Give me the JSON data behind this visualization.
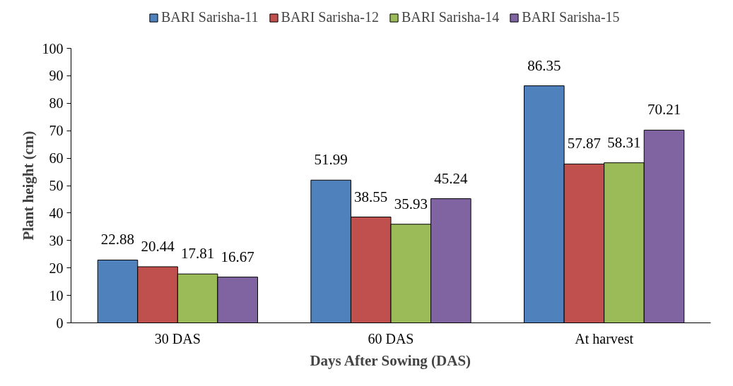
{
  "chart_data": {
    "type": "bar",
    "xlabel": "Days After Sowing (DAS)",
    "ylabel": "Plant height (cm)",
    "categories": [
      "30 DAS",
      "60 DAS",
      "At harvest"
    ],
    "series": [
      {
        "name": "BARI Sarisha-11",
        "color": "#4f81bd",
        "values": [
          22.88,
          51.99,
          86.35
        ]
      },
      {
        "name": "BARI Sarisha-12",
        "color": "#c0504d",
        "values": [
          20.44,
          38.55,
          57.87
        ]
      },
      {
        "name": "BARI Sarisha-14",
        "color": "#9bbb59",
        "values": [
          17.81,
          35.93,
          58.31
        ]
      },
      {
        "name": "BARI Sarisha-15",
        "color": "#8064a2",
        "values": [
          16.67,
          45.24,
          70.21
        ]
      }
    ],
    "ylim": [
      0,
      100
    ],
    "yticks": [
      0,
      10,
      20,
      30,
      40,
      50,
      60,
      70,
      80,
      90,
      100
    ],
    "data_labels": true,
    "grid": false,
    "legend": "top"
  }
}
